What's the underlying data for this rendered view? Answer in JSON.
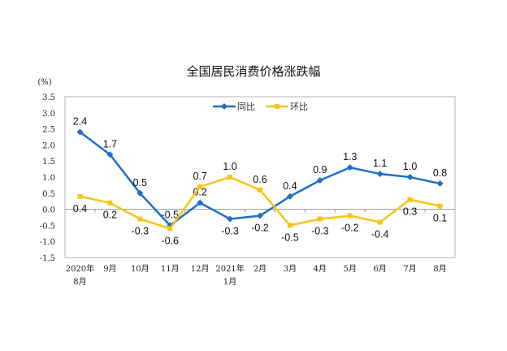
{
  "chart_data": {
    "type": "line",
    "title": "全国居民消费价格涨跌幅",
    "ylabel": "(%)",
    "xlabel": "",
    "ylim": [
      -1.5,
      3.5
    ],
    "yticks": [
      "3.5",
      "3.0",
      "2.5",
      "2.0",
      "1.5",
      "1.0",
      "0.5",
      "0.0",
      "-0.5",
      "-1.0",
      "-1.5"
    ],
    "ytick_values": [
      3.5,
      3.0,
      2.5,
      2.0,
      1.5,
      1.0,
      0.5,
      0.0,
      -0.5,
      -1.0,
      -1.5
    ],
    "categories": [
      [
        "2020年",
        "8月"
      ],
      [
        "9月"
      ],
      [
        "10月"
      ],
      [
        "11月"
      ],
      [
        "12月"
      ],
      [
        "2021年",
        "1月"
      ],
      [
        "2月"
      ],
      [
        "3月"
      ],
      [
        "4月"
      ],
      [
        "5月"
      ],
      [
        "6月"
      ],
      [
        "7月"
      ],
      [
        "8月"
      ]
    ],
    "legend_position": "top-center",
    "grid": false,
    "series": [
      {
        "name": "同比",
        "color": "#1f6fc5",
        "marker": "diamond",
        "values": [
          2.4,
          1.7,
          0.5,
          -0.5,
          0.2,
          -0.3,
          -0.2,
          0.4,
          0.9,
          1.3,
          1.1,
          1.0,
          0.8
        ],
        "labels": [
          "2.4",
          "1.7",
          "0.5",
          "-0.5",
          "0.2",
          "-0.3",
          "-0.2",
          "0.4",
          "0.9",
          "1.3",
          "1.1",
          "1.0",
          "0.8"
        ]
      },
      {
        "name": "环比",
        "color": "#f5c518",
        "marker": "square",
        "values": [
          0.4,
          0.2,
          -0.3,
          -0.6,
          0.7,
          1.0,
          0.6,
          -0.5,
          -0.3,
          -0.2,
          -0.4,
          0.3,
          0.1
        ],
        "labels": [
          "0.4",
          "0.2",
          "-0.3",
          "-0.6",
          "0.7",
          "1.0",
          "0.6",
          "-0.5",
          "-0.3",
          "-0.2",
          "-0.4",
          "0.3",
          "0.1"
        ]
      }
    ]
  }
}
